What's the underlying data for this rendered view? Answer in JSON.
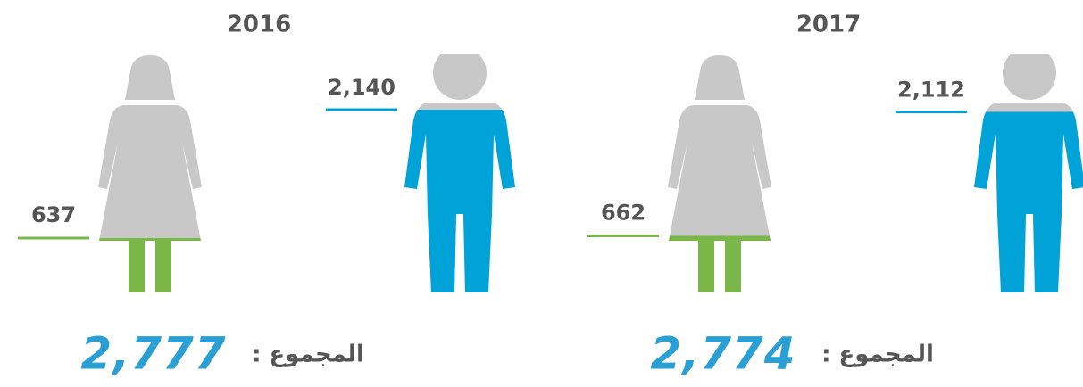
{
  "panels": [
    {
      "year": "2016",
      "women": "637",
      "men": "2,140",
      "total_label": "المجموع :",
      "total": "2,777"
    },
    {
      "year": "2017",
      "women": "662",
      "men": "2,112",
      "total_label": "المجموع :",
      "total": "2,774"
    }
  ]
}
